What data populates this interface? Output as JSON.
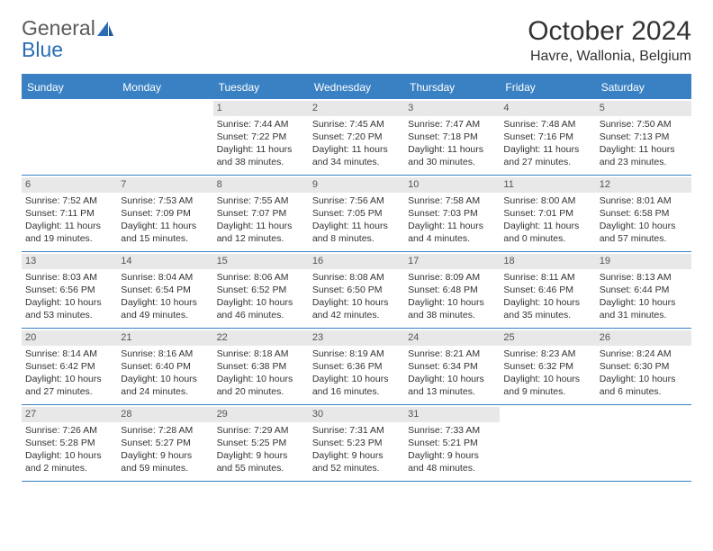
{
  "colors": {
    "header_bg": "#3a81c4",
    "header_text": "#ffffff",
    "daynum_bg": "#e8e8e8",
    "border": "#3a81c4",
    "text": "#333333",
    "logo_gray": "#5a5a5a",
    "logo_blue": "#2a6db5"
  },
  "logo": {
    "part1": "General",
    "part2": "Blue"
  },
  "title": {
    "month": "October 2024",
    "location": "Havre, Wallonia, Belgium"
  },
  "weekdays": [
    "Sunday",
    "Monday",
    "Tuesday",
    "Wednesday",
    "Thursday",
    "Friday",
    "Saturday"
  ],
  "weeks": [
    [
      {
        "num": "",
        "sunrise": "",
        "sunset": "",
        "daylight": ""
      },
      {
        "num": "",
        "sunrise": "",
        "sunset": "",
        "daylight": ""
      },
      {
        "num": "1",
        "sunrise": "Sunrise: 7:44 AM",
        "sunset": "Sunset: 7:22 PM",
        "daylight": "Daylight: 11 hours and 38 minutes."
      },
      {
        "num": "2",
        "sunrise": "Sunrise: 7:45 AM",
        "sunset": "Sunset: 7:20 PM",
        "daylight": "Daylight: 11 hours and 34 minutes."
      },
      {
        "num": "3",
        "sunrise": "Sunrise: 7:47 AM",
        "sunset": "Sunset: 7:18 PM",
        "daylight": "Daylight: 11 hours and 30 minutes."
      },
      {
        "num": "4",
        "sunrise": "Sunrise: 7:48 AM",
        "sunset": "Sunset: 7:16 PM",
        "daylight": "Daylight: 11 hours and 27 minutes."
      },
      {
        "num": "5",
        "sunrise": "Sunrise: 7:50 AM",
        "sunset": "Sunset: 7:13 PM",
        "daylight": "Daylight: 11 hours and 23 minutes."
      }
    ],
    [
      {
        "num": "6",
        "sunrise": "Sunrise: 7:52 AM",
        "sunset": "Sunset: 7:11 PM",
        "daylight": "Daylight: 11 hours and 19 minutes."
      },
      {
        "num": "7",
        "sunrise": "Sunrise: 7:53 AM",
        "sunset": "Sunset: 7:09 PM",
        "daylight": "Daylight: 11 hours and 15 minutes."
      },
      {
        "num": "8",
        "sunrise": "Sunrise: 7:55 AM",
        "sunset": "Sunset: 7:07 PM",
        "daylight": "Daylight: 11 hours and 12 minutes."
      },
      {
        "num": "9",
        "sunrise": "Sunrise: 7:56 AM",
        "sunset": "Sunset: 7:05 PM",
        "daylight": "Daylight: 11 hours and 8 minutes."
      },
      {
        "num": "10",
        "sunrise": "Sunrise: 7:58 AM",
        "sunset": "Sunset: 7:03 PM",
        "daylight": "Daylight: 11 hours and 4 minutes."
      },
      {
        "num": "11",
        "sunrise": "Sunrise: 8:00 AM",
        "sunset": "Sunset: 7:01 PM",
        "daylight": "Daylight: 11 hours and 0 minutes."
      },
      {
        "num": "12",
        "sunrise": "Sunrise: 8:01 AM",
        "sunset": "Sunset: 6:58 PM",
        "daylight": "Daylight: 10 hours and 57 minutes."
      }
    ],
    [
      {
        "num": "13",
        "sunrise": "Sunrise: 8:03 AM",
        "sunset": "Sunset: 6:56 PM",
        "daylight": "Daylight: 10 hours and 53 minutes."
      },
      {
        "num": "14",
        "sunrise": "Sunrise: 8:04 AM",
        "sunset": "Sunset: 6:54 PM",
        "daylight": "Daylight: 10 hours and 49 minutes."
      },
      {
        "num": "15",
        "sunrise": "Sunrise: 8:06 AM",
        "sunset": "Sunset: 6:52 PM",
        "daylight": "Daylight: 10 hours and 46 minutes."
      },
      {
        "num": "16",
        "sunrise": "Sunrise: 8:08 AM",
        "sunset": "Sunset: 6:50 PM",
        "daylight": "Daylight: 10 hours and 42 minutes."
      },
      {
        "num": "17",
        "sunrise": "Sunrise: 8:09 AM",
        "sunset": "Sunset: 6:48 PM",
        "daylight": "Daylight: 10 hours and 38 minutes."
      },
      {
        "num": "18",
        "sunrise": "Sunrise: 8:11 AM",
        "sunset": "Sunset: 6:46 PM",
        "daylight": "Daylight: 10 hours and 35 minutes."
      },
      {
        "num": "19",
        "sunrise": "Sunrise: 8:13 AM",
        "sunset": "Sunset: 6:44 PM",
        "daylight": "Daylight: 10 hours and 31 minutes."
      }
    ],
    [
      {
        "num": "20",
        "sunrise": "Sunrise: 8:14 AM",
        "sunset": "Sunset: 6:42 PM",
        "daylight": "Daylight: 10 hours and 27 minutes."
      },
      {
        "num": "21",
        "sunrise": "Sunrise: 8:16 AM",
        "sunset": "Sunset: 6:40 PM",
        "daylight": "Daylight: 10 hours and 24 minutes."
      },
      {
        "num": "22",
        "sunrise": "Sunrise: 8:18 AM",
        "sunset": "Sunset: 6:38 PM",
        "daylight": "Daylight: 10 hours and 20 minutes."
      },
      {
        "num": "23",
        "sunrise": "Sunrise: 8:19 AM",
        "sunset": "Sunset: 6:36 PM",
        "daylight": "Daylight: 10 hours and 16 minutes."
      },
      {
        "num": "24",
        "sunrise": "Sunrise: 8:21 AM",
        "sunset": "Sunset: 6:34 PM",
        "daylight": "Daylight: 10 hours and 13 minutes."
      },
      {
        "num": "25",
        "sunrise": "Sunrise: 8:23 AM",
        "sunset": "Sunset: 6:32 PM",
        "daylight": "Daylight: 10 hours and 9 minutes."
      },
      {
        "num": "26",
        "sunrise": "Sunrise: 8:24 AM",
        "sunset": "Sunset: 6:30 PM",
        "daylight": "Daylight: 10 hours and 6 minutes."
      }
    ],
    [
      {
        "num": "27",
        "sunrise": "Sunrise: 7:26 AM",
        "sunset": "Sunset: 5:28 PM",
        "daylight": "Daylight: 10 hours and 2 minutes."
      },
      {
        "num": "28",
        "sunrise": "Sunrise: 7:28 AM",
        "sunset": "Sunset: 5:27 PM",
        "daylight": "Daylight: 9 hours and 59 minutes."
      },
      {
        "num": "29",
        "sunrise": "Sunrise: 7:29 AM",
        "sunset": "Sunset: 5:25 PM",
        "daylight": "Daylight: 9 hours and 55 minutes."
      },
      {
        "num": "30",
        "sunrise": "Sunrise: 7:31 AM",
        "sunset": "Sunset: 5:23 PM",
        "daylight": "Daylight: 9 hours and 52 minutes."
      },
      {
        "num": "31",
        "sunrise": "Sunrise: 7:33 AM",
        "sunset": "Sunset: 5:21 PM",
        "daylight": "Daylight: 9 hours and 48 minutes."
      },
      {
        "num": "",
        "sunrise": "",
        "sunset": "",
        "daylight": ""
      },
      {
        "num": "",
        "sunrise": "",
        "sunset": "",
        "daylight": ""
      }
    ]
  ]
}
